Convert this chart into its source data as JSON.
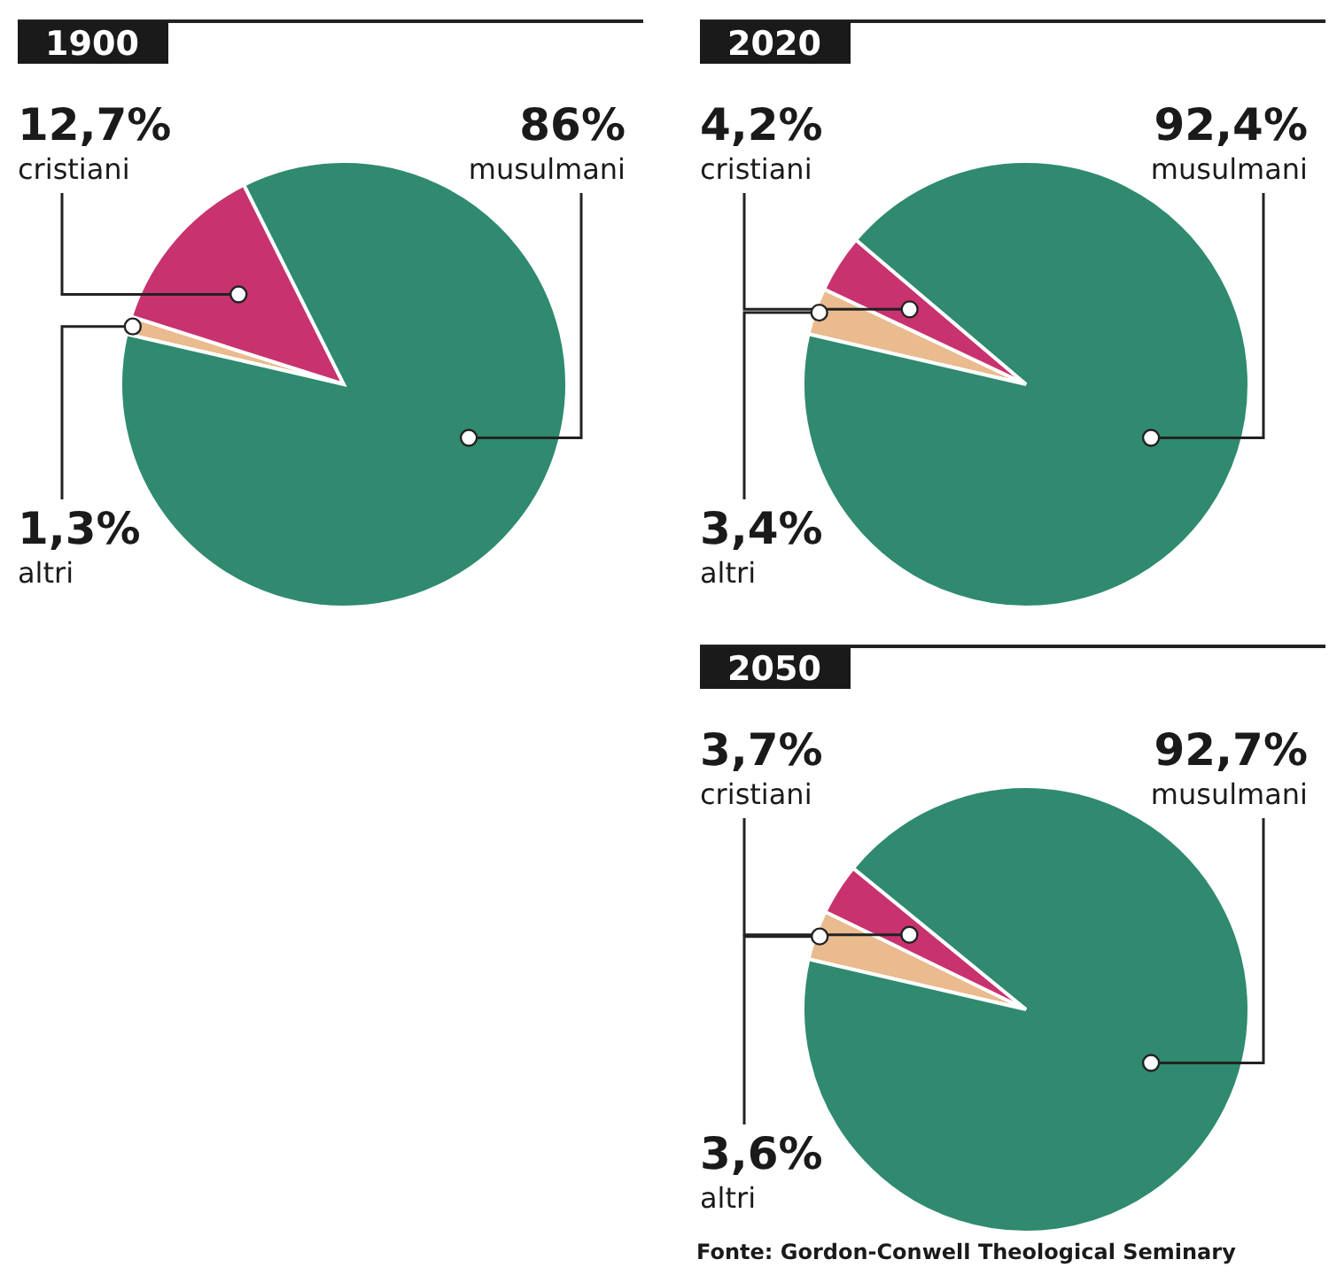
{
  "chart_data": [
    {
      "type": "pie",
      "title": "1900",
      "categories": [
        "altri",
        "cristiani",
        "musulmani"
      ],
      "values": [
        1.3,
        12.7,
        86
      ],
      "colors": [
        "#e9bb8e",
        "#c8336f",
        "#2f8a6f"
      ],
      "value_labels": [
        "1,3%",
        "12,7%",
        "86%"
      ]
    },
    {
      "type": "pie",
      "title": "2020",
      "categories": [
        "altri",
        "cristiani",
        "musulmani"
      ],
      "values": [
        3.4,
        4.2,
        92.4
      ],
      "colors": [
        "#e9bb8e",
        "#c8336f",
        "#2f8a6f"
      ],
      "value_labels": [
        "3,4%",
        "4,2%",
        "92,4%"
      ]
    },
    {
      "type": "pie",
      "title": "2050",
      "categories": [
        "altri",
        "cristiani",
        "musulmani"
      ],
      "values": [
        3.6,
        3.7,
        92.7
      ],
      "colors": [
        "#e9bb8e",
        "#c8336f",
        "#2f8a6f"
      ],
      "value_labels": [
        "3,6%",
        "3,7%",
        "92,7%"
      ],
      "annotations": [
        "Fonte: Gordon-Conwell Theological Seminary"
      ]
    }
  ]
}
